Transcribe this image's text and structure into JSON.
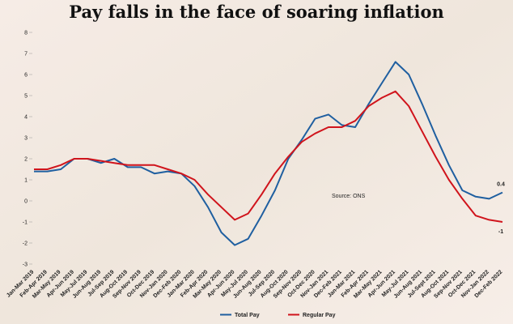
{
  "chart_data": {
    "type": "line",
    "title": "Pay falls in the face of soaring inflation",
    "annotation": "Source: ONS",
    "categories": [
      "Jan-Mar 2019",
      "Feb-Apr 2019",
      "Mar-May 2019",
      "Apr-Jun 2019",
      "May-Jul 2019",
      "Jun-Aug 2019",
      "Jul-Sep 2019",
      "Aug-Oct 2019",
      "Sep-Nov 2019",
      "Oct-Dec 2019",
      "Nov-Jan 2020",
      "Dec-Feb 2020",
      "Jan-Mar 2020",
      "Feb-Apr 2020",
      "Mar-May 2020",
      "Apr-Jun 2020",
      "May-Jul 2020",
      "Jun-Aug 2020",
      "Jul-Sep 2020",
      "Aug-Oct 2020",
      "Sep-Nov 2020",
      "Oct-Dec 2020",
      "Nov-Jan 2021",
      "Dec-Feb 2021",
      "Jan-Mar 2021",
      "Feb-Apr 2021",
      "Mar-May 2021",
      "Apr-Jun 2021",
      "May-Jul 2021",
      "Jun-Aug 2021",
      "Jul-Sept 2021",
      "Aug-Oct 2021",
      "Sep-Nov 2021",
      "Oct-Dec 2021",
      "Nov-Jan 2022",
      "Dec-Feb 2022"
    ],
    "series": [
      {
        "name": "Total Pay",
        "color": "#1f5fa0",
        "values": [
          1.4,
          1.4,
          1.5,
          2.0,
          2.0,
          1.8,
          2.0,
          1.6,
          1.6,
          1.3,
          1.4,
          1.3,
          0.7,
          -0.3,
          -1.5,
          -2.1,
          -1.8,
          -0.7,
          0.5,
          2.0,
          2.9,
          3.9,
          4.1,
          3.6,
          3.5,
          4.6,
          5.6,
          6.6,
          6.0,
          4.6,
          3.1,
          1.7,
          0.5,
          0.2,
          0.1,
          0.4
        ],
        "value_labels": [
          null,
          null,
          null,
          null,
          null,
          null,
          null,
          null,
          null,
          null,
          null,
          null,
          null,
          null,
          null,
          null,
          null,
          null,
          null,
          null,
          null,
          null,
          null,
          null,
          null,
          null,
          null,
          null,
          null,
          null,
          null,
          null,
          null,
          null,
          null,
          0.4
        ]
      },
      {
        "name": "Regular Pay",
        "color": "#d0141c",
        "values": [
          1.5,
          1.5,
          1.7,
          2.0,
          2.0,
          1.9,
          1.8,
          1.7,
          1.7,
          1.7,
          1.5,
          1.3,
          1.0,
          0.3,
          -0.3,
          -0.9,
          -0.6,
          0.3,
          1.3,
          2.1,
          2.8,
          3.2,
          3.5,
          3.5,
          3.8,
          4.5,
          4.9,
          5.2,
          4.5,
          3.3,
          2.1,
          1.0,
          0.1,
          -0.7,
          -0.9,
          -1.0
        ],
        "value_labels": [
          null,
          null,
          null,
          null,
          null,
          null,
          null,
          null,
          null,
          null,
          null,
          null,
          null,
          null,
          null,
          null,
          null,
          null,
          null,
          null,
          null,
          null,
          null,
          null,
          null,
          null,
          null,
          null,
          null,
          null,
          null,
          null,
          null,
          null,
          null,
          -1
        ]
      }
    ],
    "ylim": [
      -3,
      8
    ],
    "yticks": [
      -3,
      -2,
      -1,
      0,
      1,
      2,
      3,
      4,
      5,
      6,
      7,
      8
    ],
    "grid": false,
    "legend": "bottom"
  }
}
